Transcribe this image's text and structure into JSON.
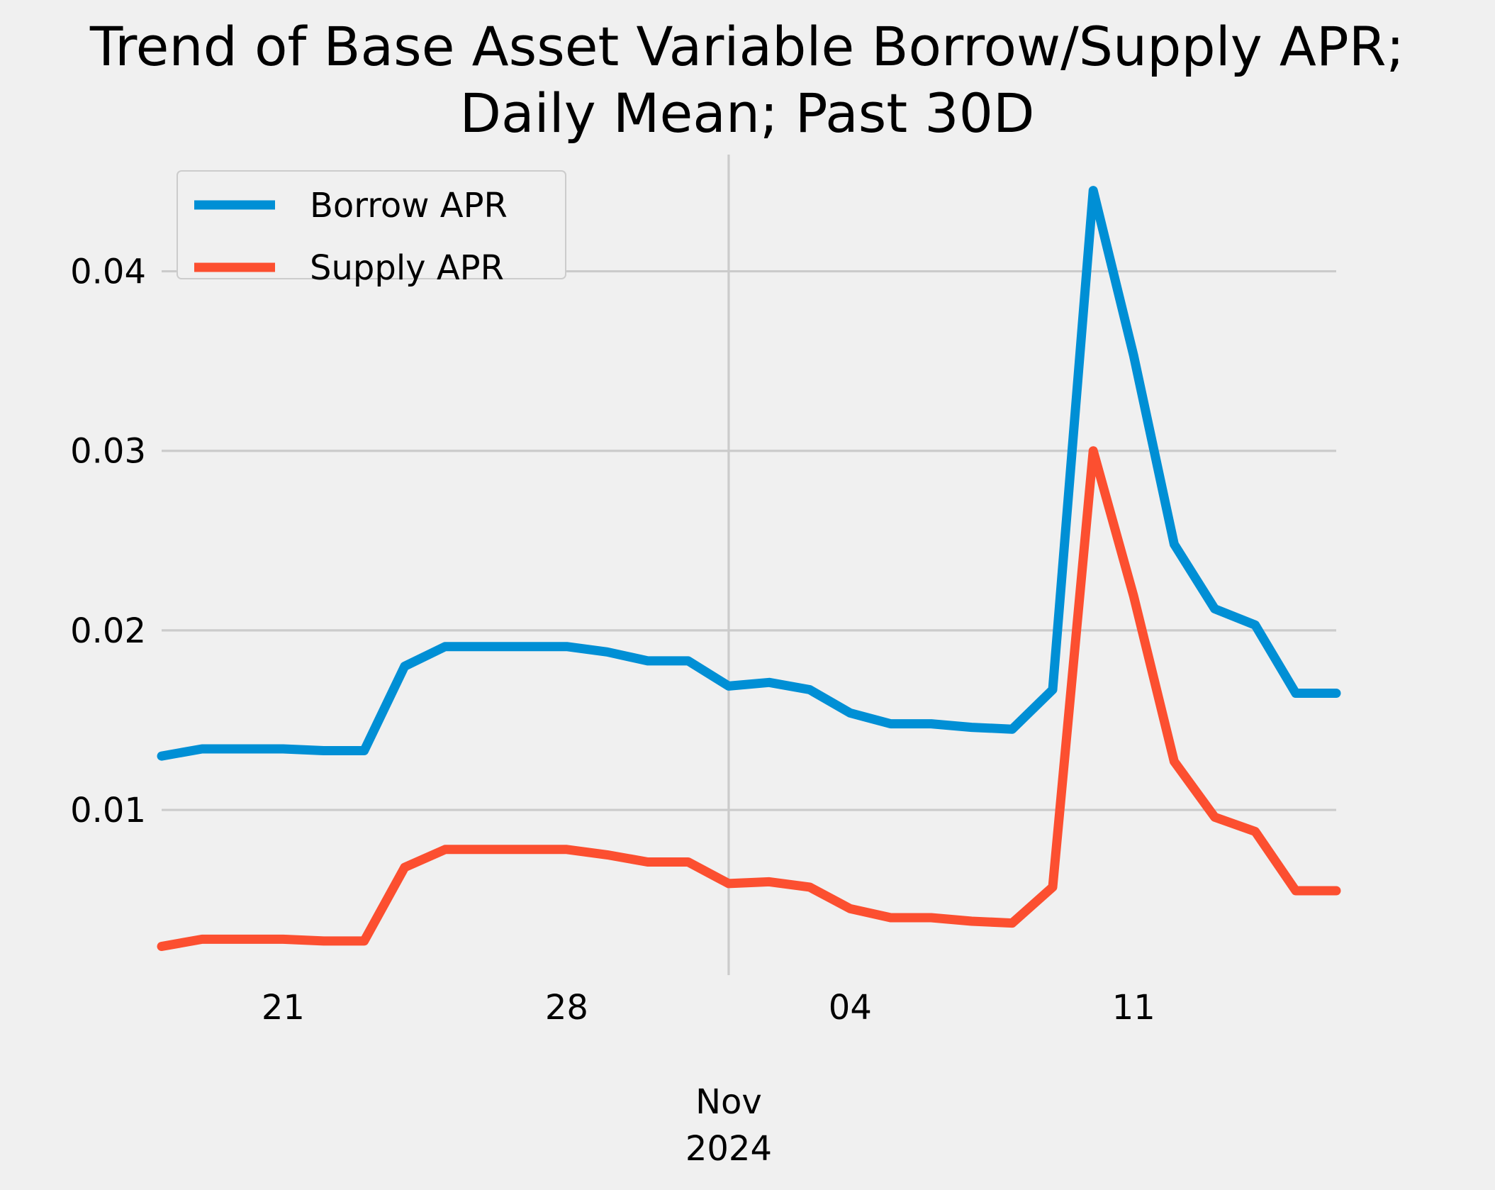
{
  "chart_data": {
    "type": "line",
    "title_line1": "Trend of Base Asset Variable Borrow/Supply APR;",
    "title_line2": "Daily Mean; Past 30D",
    "xlabel": "",
    "ylabel": "",
    "x_start": "2024-10-18",
    "x_end": "2024-11-16",
    "x_ticks": [
      {
        "date": "2024-10-21",
        "label": "21"
      },
      {
        "date": "2024-10-28",
        "label": "28"
      },
      {
        "date": "2024-11-04",
        "label": "04"
      },
      {
        "date": "2024-11-11",
        "label": "11"
      }
    ],
    "x_secondary_label": {
      "date": "2024-11-01",
      "line1": "Nov",
      "line2": "2024"
    },
    "x_vertical_grid": [
      "2024-11-01"
    ],
    "ylim": [
      0.0008,
      0.0465
    ],
    "y_ticks": [
      {
        "value": 0.01,
        "label": "0.01"
      },
      {
        "value": 0.02,
        "label": "0.02"
      },
      {
        "value": 0.03,
        "label": "0.03"
      },
      {
        "value": 0.04,
        "label": "0.04"
      }
    ],
    "grid": true,
    "legend_position": "top-left",
    "series": [
      {
        "name": "Borrow APR",
        "color": "#008fd5",
        "points": [
          [
            "2024-10-18",
            0.013
          ],
          [
            "2024-10-19",
            0.0134
          ],
          [
            "2024-10-20",
            0.0134
          ],
          [
            "2024-10-21",
            0.0134
          ],
          [
            "2024-10-22",
            0.0133
          ],
          [
            "2024-10-23",
            0.0133
          ],
          [
            "2024-10-24",
            0.018
          ],
          [
            "2024-10-25",
            0.0191
          ],
          [
            "2024-10-26",
            0.0191
          ],
          [
            "2024-10-27",
            0.0191
          ],
          [
            "2024-10-28",
            0.0191
          ],
          [
            "2024-10-29",
            0.0188
          ],
          [
            "2024-10-30",
            0.0183
          ],
          [
            "2024-10-31",
            0.0183
          ],
          [
            "2024-11-01",
            0.0169
          ],
          [
            "2024-11-02",
            0.0171
          ],
          [
            "2024-11-03",
            0.0167
          ],
          [
            "2024-11-04",
            0.0154
          ],
          [
            "2024-11-05",
            0.0148
          ],
          [
            "2024-11-06",
            0.0148
          ],
          [
            "2024-11-07",
            0.0146
          ],
          [
            "2024-11-08",
            0.0145
          ],
          [
            "2024-11-09",
            0.0167
          ],
          [
            "2024-11-10",
            0.0445
          ],
          [
            "2024-11-11",
            0.0353
          ],
          [
            "2024-11-12",
            0.0248
          ],
          [
            "2024-11-13",
            0.0212
          ],
          [
            "2024-11-14",
            0.0203
          ],
          [
            "2024-11-15",
            0.0165
          ],
          [
            "2024-11-16",
            0.0165
          ]
        ]
      },
      {
        "name": "Supply APR",
        "color": "#fc4f30",
        "points": [
          [
            "2024-10-18",
            0.0024
          ],
          [
            "2024-10-19",
            0.0028
          ],
          [
            "2024-10-20",
            0.0028
          ],
          [
            "2024-10-21",
            0.0028
          ],
          [
            "2024-10-22",
            0.0027
          ],
          [
            "2024-10-23",
            0.0027
          ],
          [
            "2024-10-24",
            0.0068
          ],
          [
            "2024-10-25",
            0.0078
          ],
          [
            "2024-10-26",
            0.0078
          ],
          [
            "2024-10-27",
            0.0078
          ],
          [
            "2024-10-28",
            0.0078
          ],
          [
            "2024-10-29",
            0.0075
          ],
          [
            "2024-10-30",
            0.0071
          ],
          [
            "2024-10-31",
            0.0071
          ],
          [
            "2024-11-01",
            0.0059
          ],
          [
            "2024-11-02",
            0.006
          ],
          [
            "2024-11-03",
            0.0057
          ],
          [
            "2024-11-04",
            0.0045
          ],
          [
            "2024-11-05",
            0.004
          ],
          [
            "2024-11-06",
            0.004
          ],
          [
            "2024-11-07",
            0.0038
          ],
          [
            "2024-11-08",
            0.0037
          ],
          [
            "2024-11-09",
            0.0057
          ],
          [
            "2024-11-10",
            0.03
          ],
          [
            "2024-11-11",
            0.0219
          ],
          [
            "2024-11-12",
            0.0127
          ],
          [
            "2024-11-13",
            0.0096
          ],
          [
            "2024-11-14",
            0.0088
          ],
          [
            "2024-11-15",
            0.0055
          ],
          [
            "2024-11-16",
            0.0055
          ]
        ]
      }
    ]
  }
}
